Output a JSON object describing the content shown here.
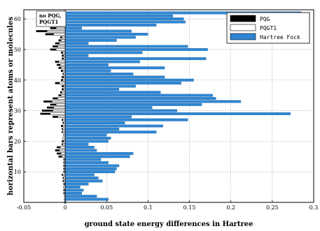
{
  "chart_data": {
    "type": "bar",
    "orientation": "horizontal",
    "xlabel": "ground state energy differences in Hartree",
    "ylabel": "horizontal bars represent atoms or molecules",
    "xlim": [
      -0.05,
      0.3
    ],
    "ylim": [
      0,
      63
    ],
    "xticks": [
      "-0.05",
      "0",
      "0.05",
      "0.1",
      "0.15",
      "0.2",
      "0.25",
      "0.3"
    ],
    "yticks": [
      "10",
      "20",
      "30",
      "40",
      "50",
      "60"
    ],
    "grid": true,
    "legend_position": "top-right",
    "note_text": "no PQG, PQGT1",
    "colors": {
      "PQG": "#000000",
      "PQGT1": "#ffffff",
      "Hartree Fock": "#2e86d4"
    },
    "series": [
      {
        "name": "PQG",
        "values": [
          -0.001,
          -0.001,
          -0.001,
          -0.002,
          -0.002,
          -0.002,
          -0.002,
          -0.003,
          -0.003,
          -0.004,
          -0.002,
          -0.002,
          -0.002,
          -0.002,
          -0.002,
          -0.008,
          -0.01,
          -0.012,
          -0.01,
          -0.004,
          -0.004,
          -0.003,
          -0.002,
          -0.004,
          -0.004,
          -0.005,
          -0.003,
          -0.004,
          -0.015,
          -0.03,
          -0.028,
          -0.022,
          -0.018,
          -0.026,
          -0.015,
          -0.008,
          -0.006,
          -0.004,
          -0.004,
          -0.012,
          -0.005,
          -0.004,
          -0.003,
          -0.005,
          -0.008,
          -0.01,
          -0.012,
          -0.004,
          -0.004,
          -0.005,
          -0.018,
          -0.015,
          -0.012,
          -0.008,
          -0.006,
          -0.024,
          -0.035,
          -0.018,
          -0.02,
          -0.004,
          -0.006,
          -0.014,
          -0.02
        ]
      },
      {
        "name": "PQGT1",
        "values": [
          -0.001,
          -0.001,
          -0.001,
          -0.001,
          -0.001,
          -0.002,
          -0.001,
          -0.002,
          -0.002,
          -0.003,
          -0.001,
          -0.001,
          -0.001,
          -0.001,
          -0.001,
          -0.004,
          -0.005,
          -0.007,
          -0.006,
          -0.003,
          -0.002,
          -0.003,
          -0.002,
          -0.003,
          -0.003,
          -0.003,
          -0.002,
          -0.003,
          -0.009,
          -0.018,
          -0.015,
          -0.014,
          -0.011,
          -0.016,
          -0.009,
          -0.005,
          -0.004,
          -0.002,
          -0.002,
          -0.007,
          -0.003,
          -0.002,
          -0.002,
          -0.003,
          -0.005,
          -0.006,
          -0.008,
          -0.002,
          -0.002,
          -0.003,
          -0.011,
          -0.009,
          -0.007,
          -0.005,
          -0.004,
          -0.014,
          -0.022,
          -0.011,
          -0.012,
          -0.002,
          -0.004,
          -0.008,
          -0.012
        ]
      },
      {
        "name": "Hartree Fock",
        "values": [
          0.001,
          0.052,
          0.038,
          0.02,
          0.022,
          0.018,
          0.028,
          0.045,
          0.04,
          0.035,
          0.06,
          0.062,
          0.065,
          0.052,
          0.043,
          0.078,
          0.082,
          0.038,
          0.035,
          0.028,
          0.052,
          0.055,
          0.05,
          0.11,
          0.065,
          0.118,
          0.072,
          0.148,
          0.08,
          0.272,
          0.135,
          0.105,
          0.165,
          0.212,
          0.182,
          0.178,
          0.115,
          0.065,
          0.085,
          0.14,
          0.155,
          0.12,
          0.082,
          0.055,
          0.12,
          0.052,
          0.09,
          0.17,
          0.028,
          0.093,
          0.172,
          0.148,
          0.028,
          0.062,
          0.085,
          0.1,
          0.08,
          0.02,
          0.11,
          0.145,
          0.143,
          0.13,
          0.285
        ]
      }
    ]
  }
}
